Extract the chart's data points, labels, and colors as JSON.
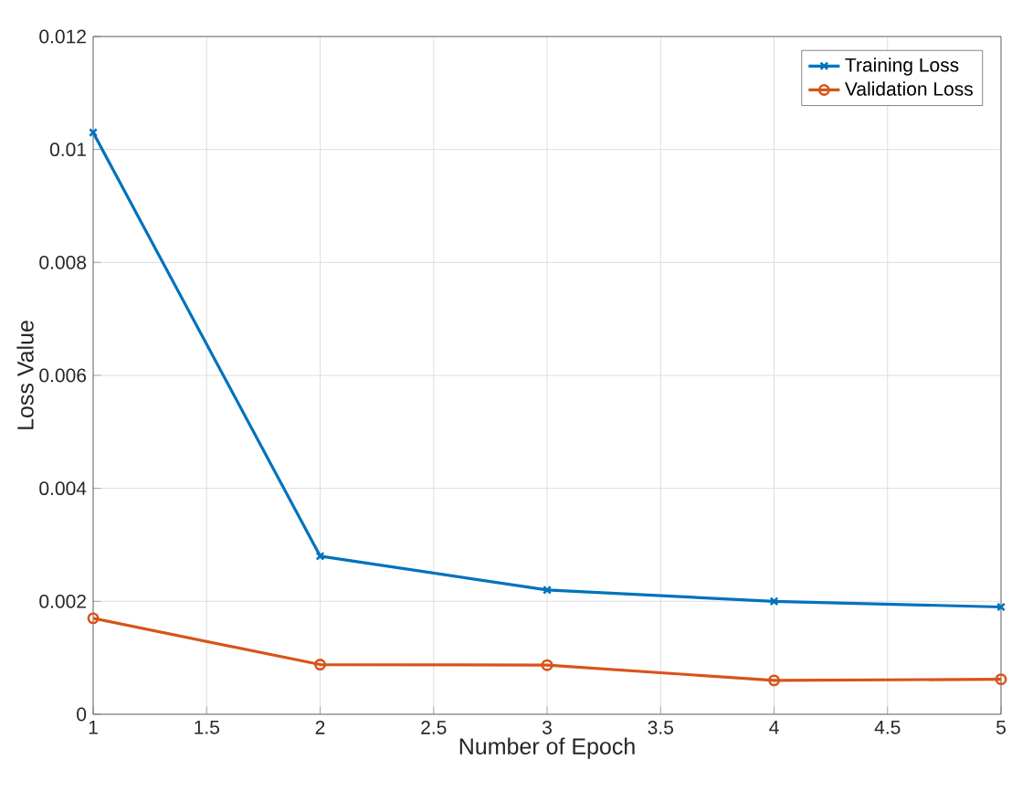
{
  "chart_data": {
    "type": "line",
    "xlabel": "Number of Epoch",
    "ylabel": "Loss Value",
    "x": [
      1,
      2,
      3,
      4,
      5
    ],
    "series": [
      {
        "name": "Training Loss",
        "color": "#0072bd",
        "marker": "cross",
        "values": [
          0.0103,
          0.0028,
          0.0022,
          0.002,
          0.0019
        ]
      },
      {
        "name": "Validation Loss",
        "color": "#d95319",
        "marker": "circle",
        "values": [
          0.0017,
          0.00088,
          0.00087,
          0.0006,
          0.00062
        ]
      }
    ],
    "xlim": [
      1,
      5
    ],
    "ylim": [
      0,
      0.012
    ],
    "xticks": [
      1,
      1.5,
      2,
      2.5,
      3,
      3.5,
      4,
      4.5,
      5
    ],
    "yticks": [
      0,
      0.002,
      0.004,
      0.006,
      0.008,
      0.01,
      0.012
    ],
    "grid": true,
    "legend": "top right",
    "line_style": "solid"
  }
}
